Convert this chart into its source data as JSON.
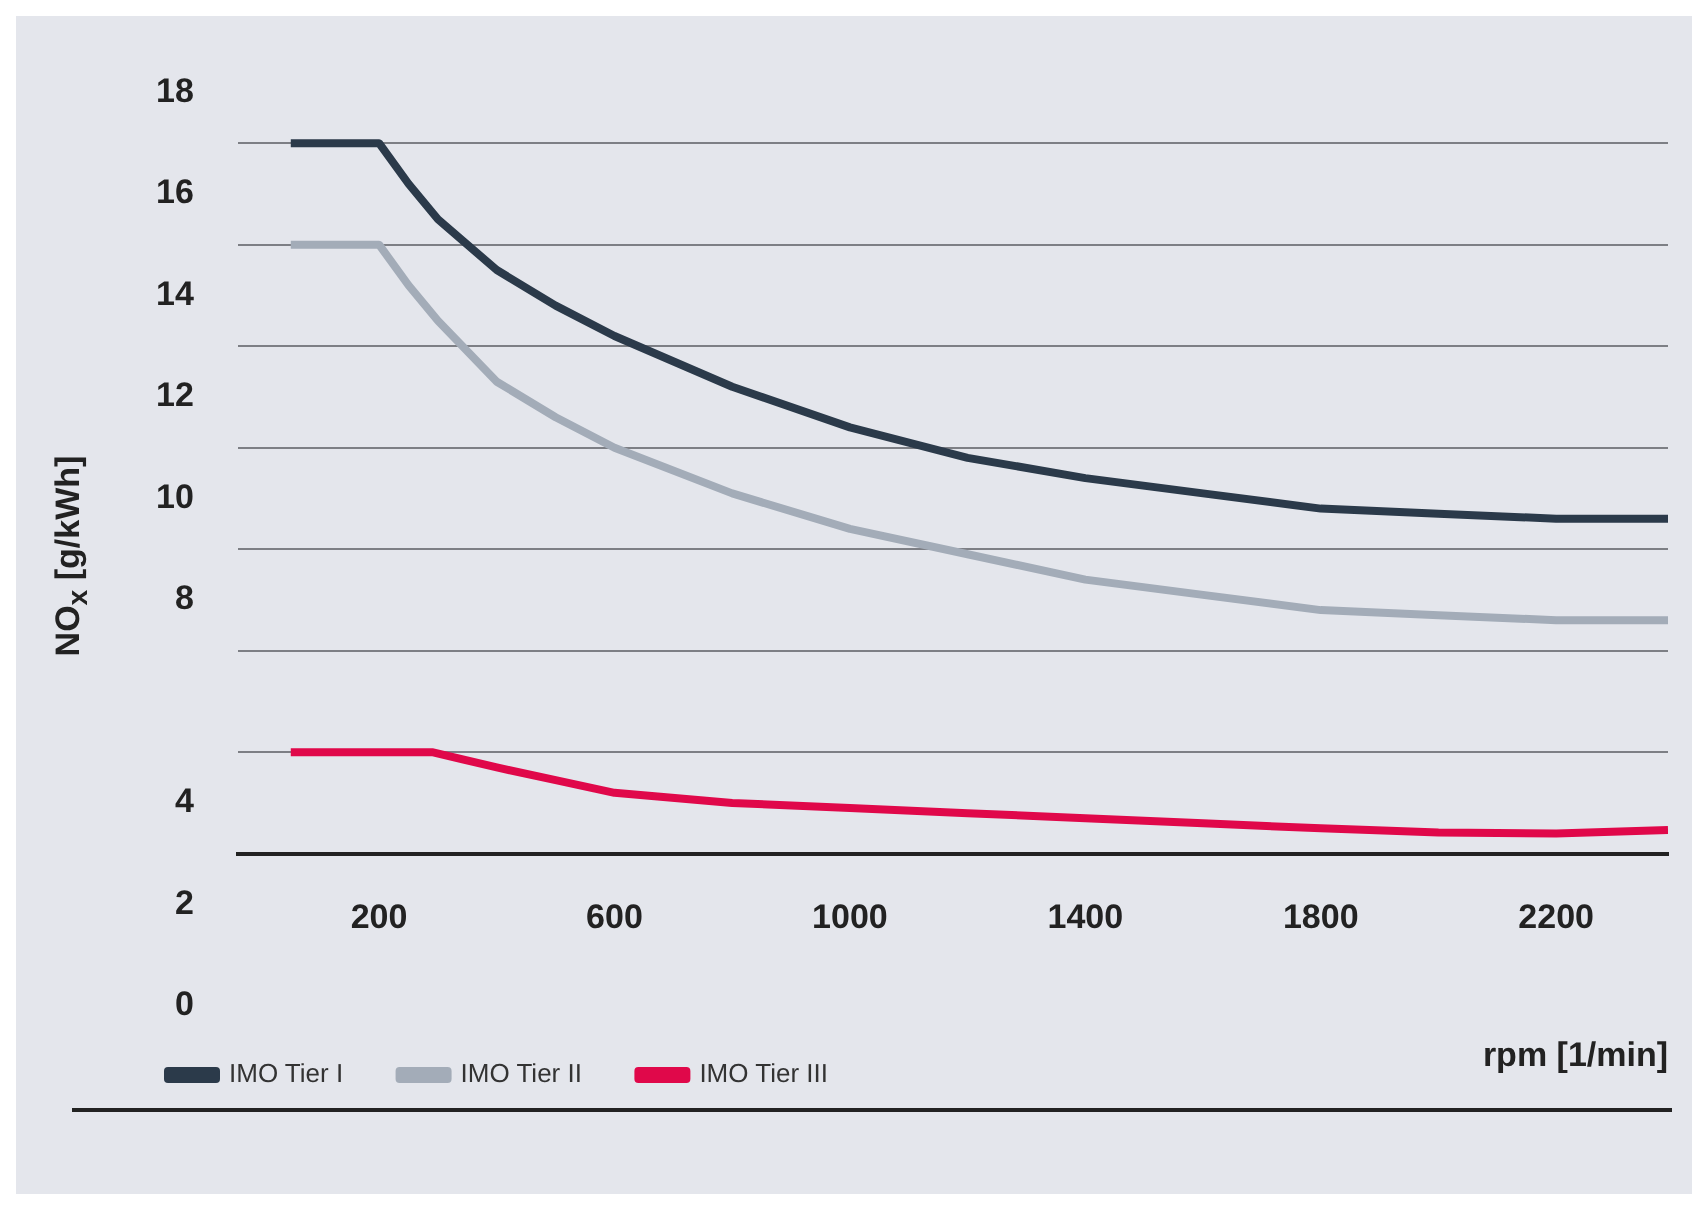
{
  "chart_data": {
    "type": "line",
    "xlabel": "rpm [1/min]",
    "ylabel": "NO$_{x}$ [g/kWh]",
    "xlim": [
      -40,
      2390
    ],
    "xticks": [
      200,
      600,
      1000,
      1400,
      1800,
      2200
    ],
    "ylim": [
      0,
      18
    ],
    "yticks": [
      18,
      {
        "value": 17,
        "label": null
      },
      16,
      {
        "value": 15,
        "label": null
      },
      14,
      {
        "value": 13,
        "label": null
      },
      12,
      {
        "value": 11,
        "label": null
      },
      10,
      {
        "value": 9,
        "label": null
      },
      8,
      {
        "value": 7,
        "label": null
      },
      {
        "value": 5,
        "label": null
      },
      4,
      {
        "value": 3,
        "label": null
      },
      2,
      0
    ],
    "grid": "y",
    "legend": "bottom left",
    "marker": "none",
    "line_style": "solid",
    "series": [
      {
        "name": "IMO Tier I",
        "color": "#2b3a4a",
        "x": [
          50,
          200,
          250,
          300,
          400,
          500,
          600,
          800,
          1000,
          1200,
          1400,
          1600,
          1800,
          2000,
          2200,
          2390
        ],
        "values": [
          17,
          17,
          16.2,
          15.5,
          14.5,
          13.8,
          13.2,
          12.2,
          11.4,
          10.8,
          10.4,
          10.1,
          9.8,
          9.7,
          9.6,
          9.6
        ]
      },
      {
        "name": "IMO Tier II",
        "color": "#a3acb8",
        "x": [
          50,
          200,
          250,
          300,
          400,
          500,
          600,
          800,
          1000,
          1200,
          1400,
          1600,
          1800,
          2000,
          2200,
          2390
        ],
        "values": [
          15,
          15,
          14.2,
          13.5,
          12.3,
          11.6,
          11,
          10.1,
          9.4,
          8.9,
          8.4,
          8.1,
          7.8,
          7.7,
          7.6,
          7.6
        ]
      },
      {
        "name": "IMO Tier III",
        "color": "#e0084a",
        "x": [
          50,
          290,
          400,
          500,
          600,
          800,
          1000,
          1200,
          1400,
          1600,
          1800,
          2000,
          2200,
          2390
        ],
        "values": [
          5,
          5,
          4.7,
          4.45,
          4.2,
          4,
          3.9,
          3.8,
          3.7,
          3.6,
          3.5,
          3.42,
          3.4,
          3.47
        ]
      }
    ]
  }
}
